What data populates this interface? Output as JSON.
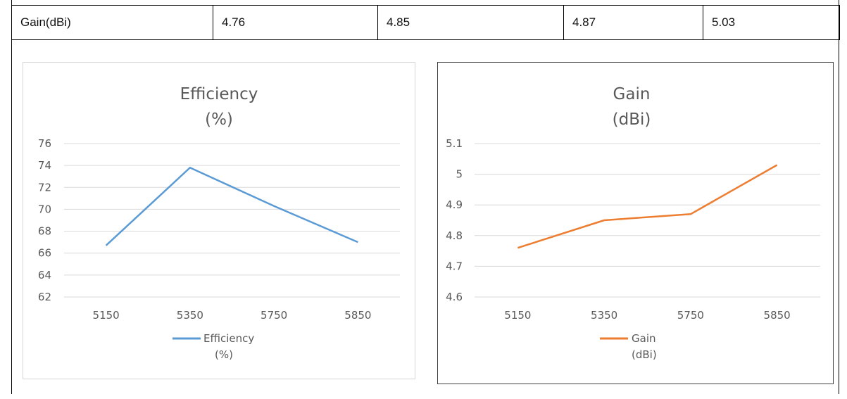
{
  "table": {
    "row": [
      "Gain(dBi)",
      "4.76",
      "4.85",
      "4.87",
      "5.03"
    ]
  },
  "chart_data": [
    {
      "type": "line",
      "title_lines": [
        "Efficiency",
        "(%)"
      ],
      "categories": [
        "5150",
        "5350",
        "5750",
        "5850"
      ],
      "series": [
        {
          "name_lines": [
            "Efficiency",
            "(%)"
          ],
          "values": [
            66.7,
            73.8,
            70.3,
            67.0
          ],
          "color": "#5b9bd5"
        }
      ],
      "ylim": [
        62,
        76
      ],
      "y_ticks": [
        "76",
        "74",
        "72",
        "70",
        "68",
        "66",
        "64",
        "62"
      ],
      "grid": true,
      "legend": "bottom"
    },
    {
      "type": "line",
      "title_lines": [
        "Gain",
        "(dBi)"
      ],
      "categories": [
        "5150",
        "5350",
        "5750",
        "5850"
      ],
      "series": [
        {
          "name_lines": [
            "Gain",
            "(dBi)"
          ],
          "values": [
            4.76,
            4.85,
            4.87,
            5.03
          ],
          "color": "#ed7d31"
        }
      ],
      "ylim": [
        4.6,
        5.1
      ],
      "y_ticks": [
        "5.1",
        "5",
        "4.9",
        "4.8",
        "4.7",
        "4.6"
      ],
      "grid": true,
      "legend": "bottom"
    }
  ]
}
